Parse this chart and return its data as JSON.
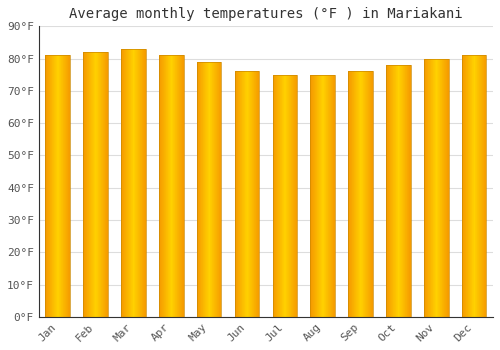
{
  "months": [
    "Jan",
    "Feb",
    "Mar",
    "Apr",
    "May",
    "Jun",
    "Jul",
    "Aug",
    "Sep",
    "Oct",
    "Nov",
    "Dec"
  ],
  "values": [
    81,
    82,
    83,
    81,
    79,
    76,
    75,
    75,
    76,
    78,
    80,
    81
  ],
  "title": "Average monthly temperatures (°F ) in Mariakani",
  "ylim": [
    0,
    90
  ],
  "yticks": [
    0,
    10,
    20,
    30,
    40,
    50,
    60,
    70,
    80,
    90
  ],
  "bar_color_center": "#FFD000",
  "bar_color_edge": "#F5A800",
  "background_color": "#FFFFFF",
  "plot_bg_color": "#FFFFFF",
  "grid_color": "#DDDDDD",
  "title_fontsize": 10,
  "tick_fontsize": 8,
  "font_family": "monospace",
  "bar_edge_color": "#CC8800",
  "bar_width": 0.65
}
